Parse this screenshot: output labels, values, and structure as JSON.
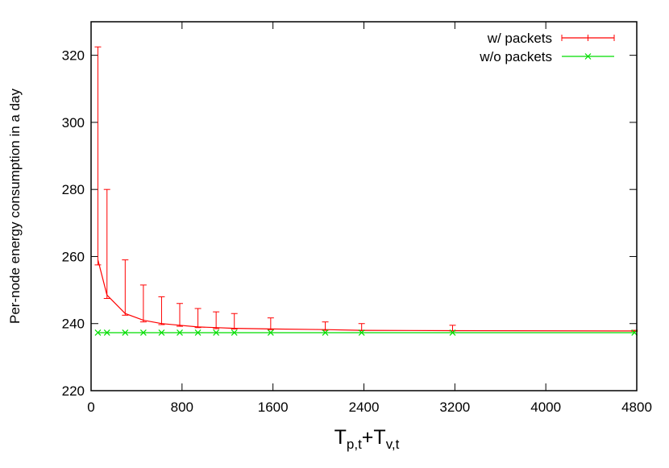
{
  "chart_data": {
    "type": "line",
    "title": "",
    "ylabel": "Per-node energy consumption in a day",
    "xlabel": {
      "T": "T",
      "sub1": "p,t",
      "plus": "+",
      "sub2": "v,t"
    },
    "xlim": [
      0,
      4800
    ],
    "ylim": [
      220,
      330
    ],
    "xticks": [
      0,
      800,
      1600,
      2400,
      3200,
      4000,
      4800
    ],
    "yticks": [
      220,
      240,
      260,
      280,
      300,
      320
    ],
    "grid": false,
    "legend_position": "top-right",
    "series": [
      {
        "name": "w/ packets",
        "color": "#ff0000",
        "marker": "errorbar",
        "x": [
          60,
          140,
          300,
          460,
          620,
          780,
          940,
          1100,
          1260,
          1580,
          2060,
          2380,
          3180,
          4780
        ],
        "y": [
          259,
          248.5,
          243,
          241,
          240,
          239.5,
          239,
          238.8,
          238.6,
          238.4,
          238.2,
          238,
          237.9,
          237.8
        ],
        "yerr_low": [
          257.5,
          247.5,
          242.5,
          240.5,
          239.7,
          239.2,
          238.8,
          238.5,
          238.4,
          238.2,
          238,
          237.9,
          237.8,
          237.7
        ],
        "yerr_high": [
          322.5,
          280,
          259,
          251.5,
          248,
          246,
          244.5,
          243.5,
          243,
          241.7,
          240.5,
          240,
          239.5,
          238
        ]
      },
      {
        "name": "w/o packets",
        "color": "#00dd00",
        "marker": "x",
        "x": [
          60,
          140,
          300,
          460,
          620,
          780,
          940,
          1100,
          1260,
          1580,
          2060,
          2380,
          3180,
          4780
        ],
        "y": [
          237.3,
          237.3,
          237.3,
          237.3,
          237.3,
          237.3,
          237.3,
          237.3,
          237.3,
          237.3,
          237.3,
          237.3,
          237.3,
          237.3
        ]
      }
    ]
  }
}
